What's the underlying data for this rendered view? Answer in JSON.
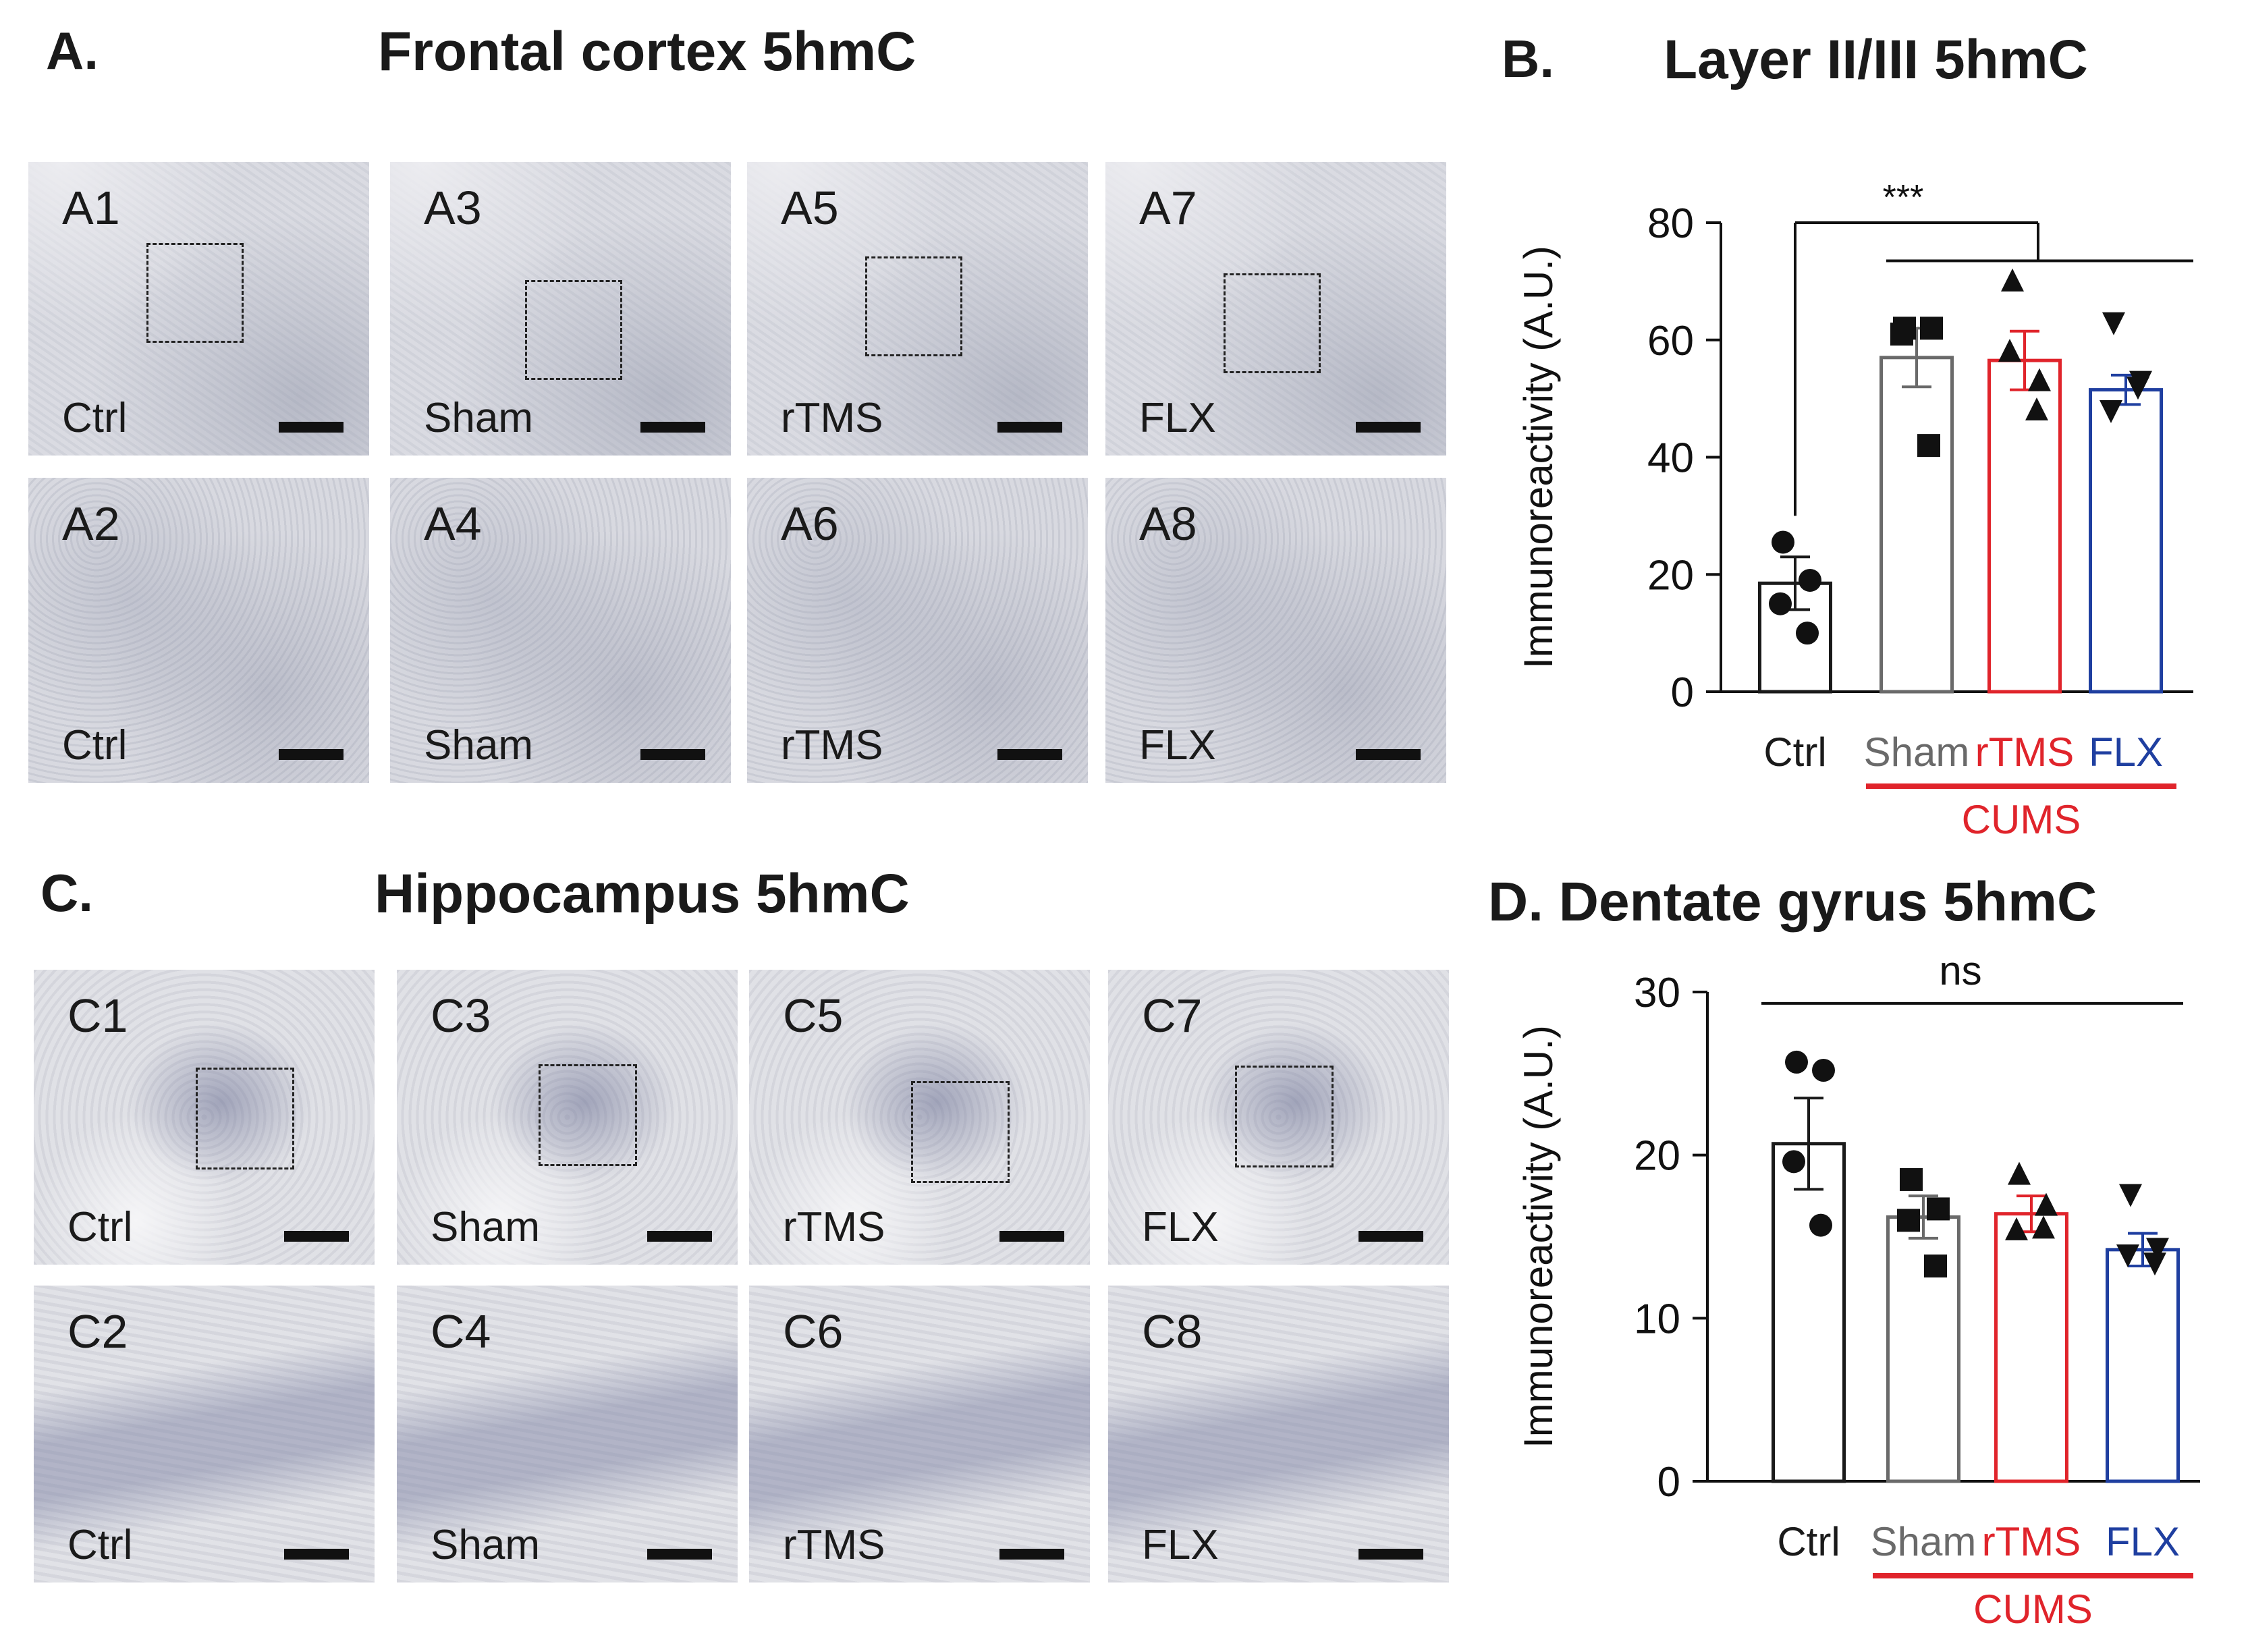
{
  "panels": {
    "A": {
      "letter": "A.",
      "title": "Frontal cortex 5hmC"
    },
    "B": {
      "letter": "B.",
      "title": "Layer II/III 5hmC"
    },
    "C": {
      "letter": "C.",
      "title": "Hippocampus 5hmC"
    },
    "D": {
      "letter": "D.",
      "title": "Dentate gyrus 5hmC"
    }
  },
  "frontal_tiles": [
    {
      "id": "A1",
      "group": "Ctrl"
    },
    {
      "id": "A3",
      "group": "Sham"
    },
    {
      "id": "A5",
      "group": "rTMS"
    },
    {
      "id": "A7",
      "group": "FLX"
    },
    {
      "id": "A2",
      "group": "Ctrl"
    },
    {
      "id": "A4",
      "group": "Sham"
    },
    {
      "id": "A6",
      "group": "rTMS"
    },
    {
      "id": "A8",
      "group": "FLX"
    }
  ],
  "hippo_tiles": [
    {
      "id": "C1",
      "group": "Ctrl"
    },
    {
      "id": "C3",
      "group": "Sham"
    },
    {
      "id": "C5",
      "group": "rTMS"
    },
    {
      "id": "C7",
      "group": "FLX"
    },
    {
      "id": "C2",
      "group": "Ctrl"
    },
    {
      "id": "C4",
      "group": "Sham"
    },
    {
      "id": "C6",
      "group": "rTMS"
    },
    {
      "id": "C8",
      "group": "FLX"
    }
  ],
  "colors": {
    "ctrl": "#1a1a1a",
    "sham": "#6a6a6a",
    "rtms": "#e0242b",
    "flx": "#1f3fa0",
    "cums_line": "#e0242b"
  },
  "chart_data": [
    {
      "type": "bar",
      "title": "Layer II/III 5hmC",
      "ylabel": "Immunoreactivity (A.U.)",
      "ylim": [
        0,
        80
      ],
      "yticks": [
        "0",
        "20",
        "40",
        "60",
        "80"
      ],
      "categories": [
        "Ctrl",
        "Sham",
        "rTMS",
        "FLX"
      ],
      "group_label": "CUMS",
      "values": [
        18.5,
        57,
        56.5,
        51.5
      ],
      "errors": [
        4.5,
        5,
        5,
        2.5
      ],
      "points": [
        [
          25.5,
          19,
          15,
          10
        ],
        [
          62,
          62,
          61,
          42
        ],
        [
          70,
          53,
          58,
          48
        ],
        [
          63,
          53,
          48,
          52
        ]
      ],
      "markers": [
        "circle",
        "square",
        "triangle",
        "triangle-down"
      ],
      "significance": "***"
    },
    {
      "type": "bar",
      "title": "Dentate gyrus 5hmC",
      "ylabel": "Immunoreactivity (A.U.)",
      "ylim": [
        0,
        30
      ],
      "yticks": [
        "0",
        "10",
        "20",
        "30"
      ],
      "categories": [
        "Ctrl",
        "Sham",
        "rTMS",
        "FLX"
      ],
      "group_label": "CUMS",
      "values": [
        20.7,
        16.2,
        16.4,
        14.2
      ],
      "errors": [
        2.8,
        1.3,
        1.1,
        1.0
      ],
      "points": [
        [
          25.7,
          25.2,
          19.6,
          15.7
        ],
        [
          18.5,
          16.7,
          16.0,
          13.2
        ],
        [
          18.8,
          16.9,
          15.4,
          15.5
        ],
        [
          17.6,
          14.3,
          13.9,
          13.4
        ]
      ],
      "markers": [
        "circle",
        "square",
        "triangle",
        "triangle-down"
      ],
      "significance": "ns"
    }
  ]
}
